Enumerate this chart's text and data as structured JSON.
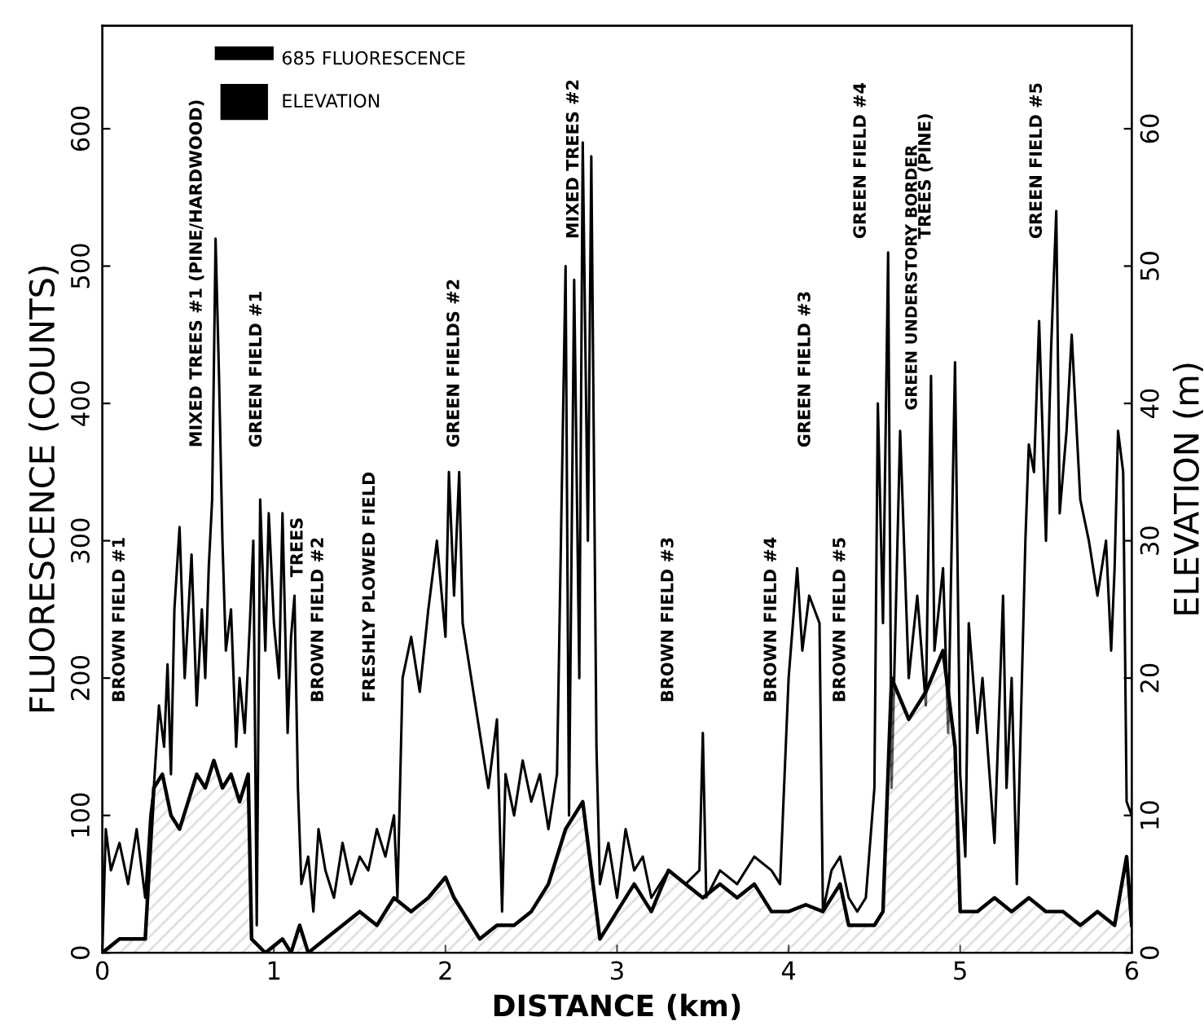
{
  "chart_data": {
    "type": "line",
    "xlabel": "DISTANCE (km)",
    "ylabel": "FLUORESCENCE (COUNTS)",
    "y2label": "ELEVATION (m)",
    "xlim": [
      0,
      6
    ],
    "xticks": [
      0,
      1,
      2,
      3,
      4,
      5,
      6
    ],
    "ylim": [
      0,
      675
    ],
    "yticks": [
      0,
      100,
      200,
      300,
      400,
      500,
      600
    ],
    "y2lim": [
      0,
      67.5
    ],
    "y2ticks": [
      0,
      10,
      20,
      30,
      40,
      50,
      60
    ],
    "grid": false,
    "legend": "top left",
    "series": [
      {
        "name": "685 FLUORESCENCE",
        "color": "#000000",
        "x": [
          0.0,
          0.02,
          0.05,
          0.1,
          0.15,
          0.2,
          0.25,
          0.28,
          0.3,
          0.33,
          0.36,
          0.38,
          0.4,
          0.42,
          0.45,
          0.48,
          0.52,
          0.55,
          0.58,
          0.6,
          0.62,
          0.64,
          0.66,
          0.68,
          0.7,
          0.72,
          0.75,
          0.78,
          0.8,
          0.83,
          0.86,
          0.88,
          0.9,
          0.92,
          0.95,
          0.97,
          1.0,
          1.03,
          1.05,
          1.08,
          1.1,
          1.12,
          1.14,
          1.16,
          1.2,
          1.23,
          1.26,
          1.3,
          1.35,
          1.4,
          1.45,
          1.5,
          1.55,
          1.6,
          1.65,
          1.7,
          1.72,
          1.75,
          1.8,
          1.85,
          1.9,
          1.95,
          2.0,
          2.02,
          2.05,
          2.08,
          2.1,
          2.15,
          2.2,
          2.25,
          2.3,
          2.33,
          2.35,
          2.4,
          2.45,
          2.5,
          2.55,
          2.6,
          2.65,
          2.7,
          2.72,
          2.75,
          2.78,
          2.8,
          2.83,
          2.85,
          2.88,
          2.9,
          2.95,
          3.0,
          3.05,
          3.1,
          3.15,
          3.2,
          3.3,
          3.4,
          3.48,
          3.5,
          3.52,
          3.6,
          3.7,
          3.8,
          3.9,
          3.95,
          4.0,
          4.05,
          4.08,
          4.12,
          4.18,
          4.2,
          4.25,
          4.3,
          4.35,
          4.4,
          4.45,
          4.5,
          4.52,
          4.55,
          4.58,
          4.6,
          4.65,
          4.7,
          4.75,
          4.8,
          4.83,
          4.85,
          4.9,
          4.93,
          4.97,
          5.0,
          5.03,
          5.05,
          5.1,
          5.13,
          5.2,
          5.25,
          5.27,
          5.3,
          5.33,
          5.38,
          5.4,
          5.43,
          5.46,
          5.5,
          5.53,
          5.56,
          5.58,
          5.62,
          5.65,
          5.7,
          5.75,
          5.8,
          5.85,
          5.88,
          5.9,
          5.92,
          5.95,
          5.97,
          6.0
        ],
        "values": [
          0,
          90,
          60,
          80,
          50,
          90,
          40,
          100,
          120,
          180,
          150,
          210,
          130,
          250,
          310,
          200,
          290,
          180,
          250,
          200,
          280,
          330,
          520,
          420,
          300,
          220,
          250,
          150,
          200,
          160,
          240,
          300,
          20,
          330,
          220,
          320,
          240,
          200,
          320,
          160,
          230,
          260,
          120,
          50,
          70,
          30,
          90,
          60,
          40,
          80,
          50,
          70,
          60,
          90,
          70,
          100,
          40,
          200,
          230,
          190,
          250,
          300,
          230,
          350,
          260,
          350,
          240,
          200,
          160,
          120,
          170,
          30,
          130,
          100,
          140,
          110,
          130,
          90,
          130,
          500,
          100,
          490,
          200,
          590,
          300,
          580,
          150,
          50,
          80,
          40,
          90,
          60,
          70,
          40,
          60,
          50,
          60,
          160,
          40,
          60,
          50,
          70,
          60,
          50,
          200,
          280,
          220,
          260,
          240,
          30,
          60,
          70,
          40,
          30,
          40,
          120,
          400,
          240,
          510,
          120,
          380,
          200,
          260,
          180,
          420,
          220,
          280,
          160,
          430,
          130,
          70,
          240,
          160,
          200,
          80,
          260,
          120,
          200,
          50,
          300,
          370,
          350,
          460,
          300,
          440,
          540,
          320,
          380,
          450,
          330,
          300,
          260,
          300,
          220,
          280,
          380,
          350,
          110,
          100
        ]
      },
      {
        "name": "ELEVATION",
        "type": "area",
        "axis": "y2",
        "color": "#000000",
        "x": [
          0.0,
          0.1,
          0.25,
          0.3,
          0.35,
          0.4,
          0.45,
          0.5,
          0.55,
          0.6,
          0.65,
          0.7,
          0.75,
          0.8,
          0.85,
          0.87,
          0.95,
          1.05,
          1.1,
          1.15,
          1.2,
          1.3,
          1.4,
          1.5,
          1.6,
          1.7,
          1.8,
          1.9,
          2.0,
          2.05,
          2.1,
          2.2,
          2.3,
          2.4,
          2.5,
          2.6,
          2.7,
          2.8,
          2.9,
          3.0,
          3.1,
          3.2,
          3.3,
          3.4,
          3.5,
          3.6,
          3.7,
          3.8,
          3.9,
          4.0,
          4.1,
          4.2,
          4.3,
          4.35,
          4.5,
          4.55,
          4.6,
          4.7,
          4.8,
          4.9,
          4.97,
          5.0,
          5.1,
          5.2,
          5.3,
          5.4,
          5.5,
          5.6,
          5.7,
          5.8,
          5.9,
          5.97,
          6.0
        ],
        "values": [
          0,
          1,
          1,
          12,
          13,
          10,
          9,
          11,
          13,
          12,
          14,
          12,
          13,
          11,
          13,
          1,
          0,
          1,
          0,
          2,
          0,
          1,
          2,
          3,
          2,
          4,
          3,
          4,
          5.5,
          4,
          3,
          1,
          2,
          2,
          3,
          5,
          9,
          11,
          1,
          3,
          5,
          3,
          6,
          5,
          4,
          5,
          4,
          5,
          3,
          3,
          3.5,
          3,
          5,
          2,
          2,
          3,
          20,
          17,
          19,
          22,
          15,
          3,
          3,
          4,
          3,
          4,
          3,
          3,
          2,
          3,
          2,
          7,
          2
        ]
      }
    ],
    "annotations": [
      "BROWN FIELD #1",
      "MIXED TREES #1 (PINE/HARDWOOD)",
      "GREEN FIELD #1",
      "TREES",
      "BROWN FIELD #2",
      "FRESHLY PLOWED FIELD",
      "GREEN FIELDS #2",
      "MIXED TREES #2",
      "BROWN FIELD #3",
      "BROWN FIELD #4",
      "GREEN FIELD #3",
      "BROWN FIELD #5",
      "GREEN FIELD #4",
      "GREEN UNDERSTORY BORDER",
      "TREES (PINE)",
      "GREEN FIELD #5"
    ]
  }
}
